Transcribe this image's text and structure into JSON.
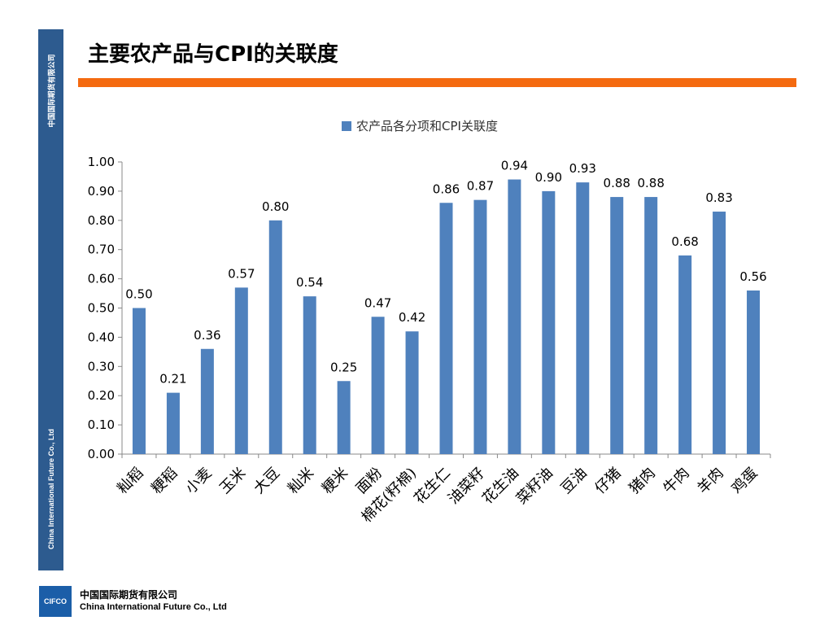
{
  "sidebar": {
    "top_text": "中国国际期货有限公司",
    "bottom_text": "China International Future Co., Ltd"
  },
  "slide": {
    "title": "主要农产品与CPI的关联度"
  },
  "footer": {
    "logo_text": "CIFCO",
    "company_cn": "中国国际期货有限公司",
    "company_en": "China International Future Co., Ltd"
  },
  "colors": {
    "bar": "#4f81bd",
    "accent_rule": "#f46a10",
    "sidebar": "#2d5b8f"
  },
  "chart_data": {
    "type": "bar",
    "legend": "农产品各分项和CPI关联度",
    "legend_position": "top",
    "categories": [
      "籼稻",
      "粳稻",
      "小麦",
      "玉米",
      "大豆",
      "籼米",
      "粳米",
      "面粉",
      "棉花(籽棉)",
      "花生仁",
      "油菜籽",
      "花生油",
      "菜籽油",
      "豆油",
      "仔猪",
      "猪肉",
      "牛肉",
      "羊肉",
      "鸡蛋"
    ],
    "series": [
      {
        "name": "农产品各分项和CPI关联度",
        "values": [
          0.5,
          0.21,
          0.36,
          0.57,
          0.8,
          0.54,
          0.25,
          0.47,
          0.42,
          0.86,
          0.87,
          0.94,
          0.9,
          0.93,
          0.88,
          0.88,
          0.68,
          0.83,
          0.56
        ]
      }
    ],
    "ylim": [
      0,
      1.0
    ],
    "yticks": [
      "0.00",
      "0.10",
      "0.20",
      "0.30",
      "0.40",
      "0.50",
      "0.60",
      "0.70",
      "0.80",
      "0.90",
      "1.00"
    ],
    "grid": false
  }
}
